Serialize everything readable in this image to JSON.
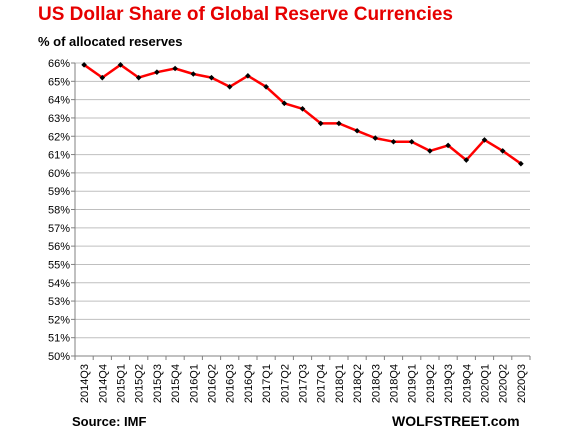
{
  "chart_data": {
    "type": "line",
    "title": "US Dollar Share of Global  Reserve Currencies",
    "subtitle": "% of allocated reserves",
    "xlabel": "",
    "ylabel": "",
    "ylim": [
      50,
      66
    ],
    "y_ticks": [
      50,
      51,
      52,
      53,
      54,
      55,
      56,
      57,
      58,
      59,
      60,
      61,
      62,
      63,
      64,
      65,
      66
    ],
    "y_tick_suffix": "%",
    "grid": true,
    "categories": [
      "2014Q3",
      "2014Q4",
      "2015Q1",
      "2015Q2",
      "2015Q3",
      "2015Q4",
      "2016Q1",
      "2016Q2",
      "2016Q3",
      "2016Q4",
      "2017Q1",
      "2017Q2",
      "2017Q3",
      "2017Q4",
      "2018Q1",
      "2018Q2",
      "2018Q3",
      "2018Q4",
      "2019Q1",
      "2019Q2",
      "2019Q3",
      "2019Q4",
      "2020Q1",
      "2020Q2",
      "2020Q3"
    ],
    "series": [
      {
        "color": "#ff0000",
        "marker_color": "#000000",
        "values": [
          65.9,
          65.2,
          65.9,
          65.2,
          65.5,
          65.7,
          65.4,
          65.2,
          64.7,
          65.3,
          64.7,
          63.8,
          63.5,
          62.7,
          62.7,
          62.3,
          61.9,
          61.7,
          61.7,
          61.2,
          61.5,
          60.7,
          61.8,
          61.2,
          60.5
        ]
      }
    ]
  },
  "source_text": "Source: IMF",
  "brand_text": "WOLFSTREET.com"
}
